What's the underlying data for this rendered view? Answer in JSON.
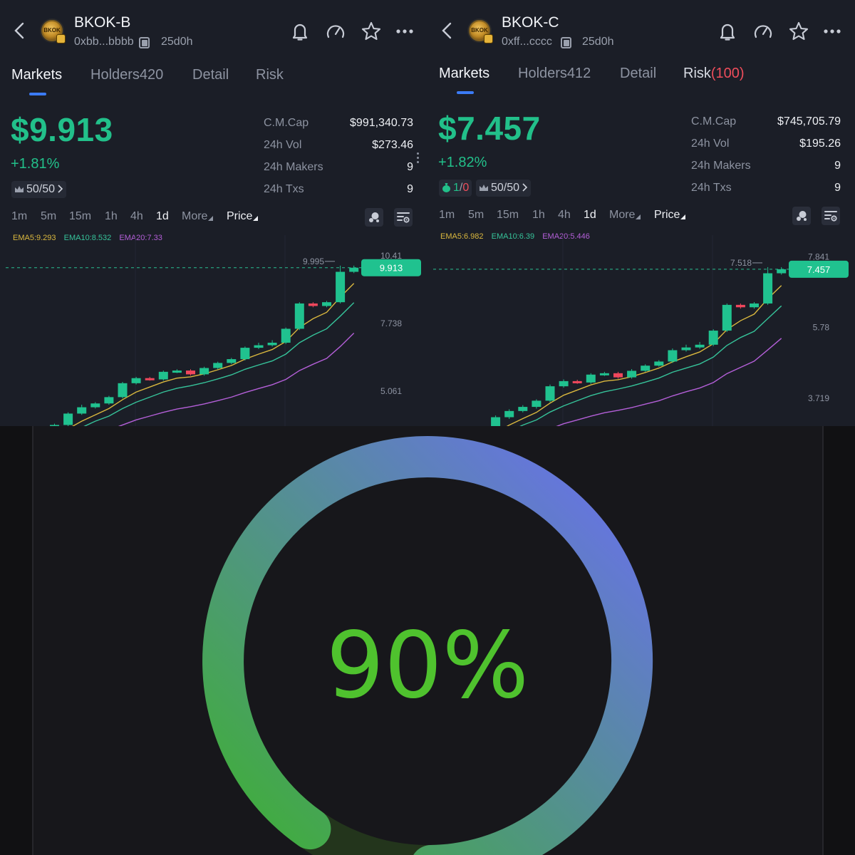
{
  "panels": [
    {
      "id": "b",
      "token_name": "BKOK-B",
      "logo_text": "BKOK",
      "address": "0xbb...bbbb",
      "age": "25d0h",
      "tabs": {
        "markets": "Markets",
        "holders": "Holders420",
        "detail": "Detail",
        "risk": "Risk",
        "risk_score": ""
      },
      "price": "$9.913",
      "change": "+1.81%",
      "dev_badge": "",
      "dev_buy": "",
      "dev_sell": "",
      "top_badge": "50/50",
      "stats": [
        {
          "label": "C.M.Cap",
          "value": "$991,340.73"
        },
        {
          "label": "24h Vol",
          "value": "$273.46"
        },
        {
          "label": "24h Makers",
          "value": "9"
        },
        {
          "label": "24h Txs",
          "value": "9"
        }
      ],
      "timeframes": [
        "1m",
        "5m",
        "15m",
        "1h",
        "4h",
        "1d"
      ],
      "active_timeframe": "1d",
      "more_label": "More",
      "price_label": "Price",
      "ema": {
        "ema5": "EMA5:9.293",
        "ema10": "EMA10:8.532",
        "ema20": "EMA20:7.33"
      },
      "chart_data": {
        "type": "candlestick",
        "y_ticks": [
          "10.41",
          "7.738",
          "5.061"
        ],
        "y_tick_values": [
          10.41,
          7.738,
          5.061
        ],
        "ylim": [
          3.6,
          11.2
        ],
        "high_label": "9.995",
        "current": 9.913,
        "current_label": "9.913",
        "candles": [
          [
            3.4,
            3.7,
            3.75,
            3.35
          ],
          [
            3.7,
            4.15,
            4.2,
            3.65
          ],
          [
            4.15,
            4.4,
            4.5,
            4.1
          ],
          [
            4.4,
            4.55,
            4.6,
            4.35
          ],
          [
            4.55,
            4.8,
            4.85,
            4.5
          ],
          [
            4.8,
            5.35,
            5.4,
            4.75
          ],
          [
            5.35,
            5.55,
            5.6,
            5.3
          ],
          [
            5.55,
            5.5,
            5.6,
            5.45
          ],
          [
            5.5,
            5.8,
            5.85,
            5.45
          ],
          [
            5.8,
            5.85,
            5.9,
            5.75
          ],
          [
            5.85,
            5.7,
            5.9,
            5.65
          ],
          [
            5.7,
            5.95,
            6.0,
            5.65
          ],
          [
            5.95,
            6.15,
            6.2,
            5.9
          ],
          [
            6.15,
            6.3,
            6.35,
            6.1
          ],
          [
            6.3,
            6.75,
            6.8,
            6.25
          ],
          [
            6.75,
            6.85,
            6.95,
            6.7
          ],
          [
            6.85,
            6.95,
            7.05,
            6.8
          ],
          [
            6.95,
            7.5,
            7.55,
            6.9
          ],
          [
            7.5,
            8.5,
            8.55,
            7.45
          ],
          [
            8.5,
            8.4,
            8.55,
            8.35
          ],
          [
            8.4,
            8.55,
            8.6,
            8.35
          ],
          [
            8.55,
            9.75,
            9.995,
            8.5
          ],
          [
            9.75,
            9.913,
            9.995,
            9.7
          ]
        ],
        "ema5": [
          3.3,
          3.55,
          3.85,
          4.1,
          4.35,
          4.7,
          5.0,
          5.2,
          5.4,
          5.55,
          5.6,
          5.72,
          5.88,
          6.05,
          6.3,
          6.5,
          6.68,
          7.0,
          7.55,
          7.9,
          8.15,
          8.75,
          9.293
        ],
        "ema10": [
          3.2,
          3.35,
          3.6,
          3.85,
          4.05,
          4.35,
          4.6,
          4.8,
          5.0,
          5.15,
          5.25,
          5.37,
          5.52,
          5.68,
          5.9,
          6.07,
          6.23,
          6.5,
          6.95,
          7.25,
          7.5,
          8.0,
          8.532
        ],
        "ema20": [
          2.9,
          3.05,
          3.2,
          3.35,
          3.5,
          3.7,
          3.9,
          4.05,
          4.2,
          4.33,
          4.42,
          4.53,
          4.66,
          4.8,
          4.98,
          5.14,
          5.29,
          5.5,
          5.85,
          6.1,
          6.33,
          6.8,
          7.33
        ]
      }
    },
    {
      "id": "c",
      "token_name": "BKOK-C",
      "logo_text": "BKOK",
      "address": "0xff...cccc",
      "age": "25d0h",
      "tabs": {
        "markets": "Markets",
        "holders": "Holders412",
        "detail": "Detail",
        "risk": "Risk",
        "risk_score": "(100)"
      },
      "price": "$7.457",
      "change": "+1.82%",
      "dev_badge": "true",
      "dev_buy": "1",
      "dev_sell": "0",
      "top_badge": "50/50",
      "stats": [
        {
          "label": "C.M.Cap",
          "value": "$745,705.79"
        },
        {
          "label": "24h Vol",
          "value": "$195.26"
        },
        {
          "label": "24h Makers",
          "value": "9"
        },
        {
          "label": "24h Txs",
          "value": "9"
        }
      ],
      "timeframes": [
        "1m",
        "5m",
        "15m",
        "1h",
        "4h",
        "1d"
      ],
      "active_timeframe": "1d",
      "more_label": "More",
      "price_label": "Price",
      "ema": {
        "ema5": "EMA5:6.982",
        "ema10": "EMA10:6.39",
        "ema20": "EMA20:5.446"
      },
      "chart_data": {
        "type": "candlestick",
        "y_ticks": [
          "7.841",
          "5.78",
          "3.719"
        ],
        "y_tick_values": [
          7.841,
          5.78,
          3.719
        ],
        "ylim": [
          2.85,
          8.45
        ],
        "high_label": "7.518",
        "current": 7.457,
        "current_label": "7.457",
        "candles": [
          [
            2.6,
            2.82,
            2.86,
            2.56
          ],
          [
            2.82,
            3.15,
            3.2,
            2.78
          ],
          [
            3.15,
            3.33,
            3.38,
            3.1
          ],
          [
            3.33,
            3.45,
            3.5,
            3.29
          ],
          [
            3.45,
            3.63,
            3.67,
            3.4
          ],
          [
            3.63,
            4.05,
            4.1,
            3.59
          ],
          [
            4.05,
            4.2,
            4.25,
            4.01
          ],
          [
            4.2,
            4.16,
            4.24,
            4.12
          ],
          [
            4.16,
            4.39,
            4.43,
            4.12
          ],
          [
            4.39,
            4.43,
            4.47,
            4.35
          ],
          [
            4.43,
            4.31,
            4.47,
            4.27
          ],
          [
            4.31,
            4.5,
            4.55,
            4.27
          ],
          [
            4.5,
            4.65,
            4.69,
            4.47
          ],
          [
            4.65,
            4.77,
            4.81,
            4.62
          ],
          [
            4.77,
            5.1,
            5.15,
            4.73
          ],
          [
            5.1,
            5.18,
            5.26,
            5.06
          ],
          [
            5.18,
            5.26,
            5.34,
            5.14
          ],
          [
            5.26,
            5.67,
            5.71,
            5.22
          ],
          [
            5.67,
            6.42,
            6.46,
            5.63
          ],
          [
            6.42,
            6.35,
            6.46,
            6.31
          ],
          [
            6.35,
            6.46,
            6.5,
            6.31
          ],
          [
            6.46,
            7.34,
            7.518,
            6.42
          ],
          [
            7.34,
            7.457,
            7.518,
            7.3
          ]
        ],
        "ema5": [
          2.52,
          2.7,
          2.92,
          3.11,
          3.29,
          3.56,
          3.79,
          3.94,
          4.09,
          4.2,
          4.24,
          4.33,
          4.45,
          4.58,
          4.76,
          4.91,
          5.05,
          5.29,
          5.7,
          5.96,
          6.15,
          6.6,
          6.982
        ],
        "ema10": [
          2.44,
          2.55,
          2.74,
          2.92,
          3.07,
          3.3,
          3.48,
          3.63,
          3.78,
          3.89,
          3.97,
          4.06,
          4.17,
          4.29,
          4.46,
          4.58,
          4.7,
          4.9,
          5.24,
          5.47,
          5.65,
          6.02,
          6.39
        ],
        "ema20": [
          2.22,
          2.33,
          2.44,
          2.55,
          2.66,
          2.81,
          2.96,
          3.07,
          3.18,
          3.28,
          3.35,
          3.43,
          3.53,
          3.63,
          3.77,
          3.89,
          4.0,
          4.16,
          4.42,
          4.6,
          4.78,
          5.11,
          5.446
        ]
      }
    }
  ],
  "gauge": {
    "percent_label": "90%",
    "value": 0.9,
    "color_start": "#3db22e",
    "color_end": "#6a6ff0",
    "track_color": "#23351c"
  }
}
